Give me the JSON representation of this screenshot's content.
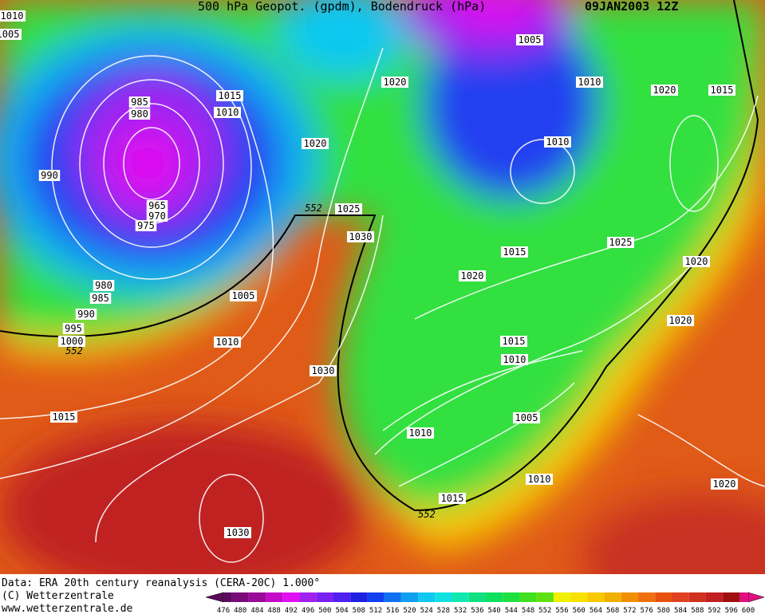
{
  "header": {
    "title": "500 hPa Geopot. (gpdm), Bodendruck (hPa)",
    "date": "09JAN2003 12Z"
  },
  "footer": {
    "source": "Data: ERA 20th century reanalysis (CERA-20C) 1.000°",
    "copyright": "(C) Wetterzentrale",
    "website": "www.wetterzentrale.de"
  },
  "colorbar": {
    "levels": [
      476,
      480,
      484,
      488,
      492,
      496,
      500,
      504,
      508,
      512,
      516,
      520,
      524,
      528,
      532,
      536,
      540,
      544,
      548,
      552,
      556,
      560,
      564,
      568,
      572,
      576,
      580,
      584,
      588,
      592,
      596,
      600
    ],
    "colors": [
      "#5a0a5a",
      "#7a0a7a",
      "#9a0a9a",
      "#c40ac8",
      "#e010f0",
      "#a020f0",
      "#7a20f0",
      "#5020f0",
      "#2020e0",
      "#1040f0",
      "#1070f0",
      "#10a0f0",
      "#10c8f0",
      "#10e0e0",
      "#10e8b0",
      "#10e080",
      "#10e060",
      "#20e040",
      "#40e020",
      "#60e010",
      "#f0f000",
      "#f8e000",
      "#f8c800",
      "#f0b000",
      "#f09000",
      "#f07010",
      "#e85010",
      "#e04020",
      "#d03020",
      "#c02020",
      "#a01010",
      "#e01080"
    ]
  },
  "map": {
    "isobar_labels": [
      "1010",
      "1005",
      "985",
      "980",
      "990",
      "965",
      "970",
      "975",
      "980",
      "985",
      "990",
      "995",
      "1000",
      "552",
      "1015",
      "1010",
      "1020",
      "552",
      "1025",
      "1030",
      "1020",
      "1005",
      "1010",
      "1020",
      "1015",
      "1010",
      "1025",
      "1015",
      "1020",
      "1020",
      "1005",
      "1010",
      "1030",
      "1015",
      "1020",
      "1015",
      "1010",
      "1005",
      "1010",
      "1010",
      "1015",
      "552",
      "1030",
      "1020"
    ]
  }
}
